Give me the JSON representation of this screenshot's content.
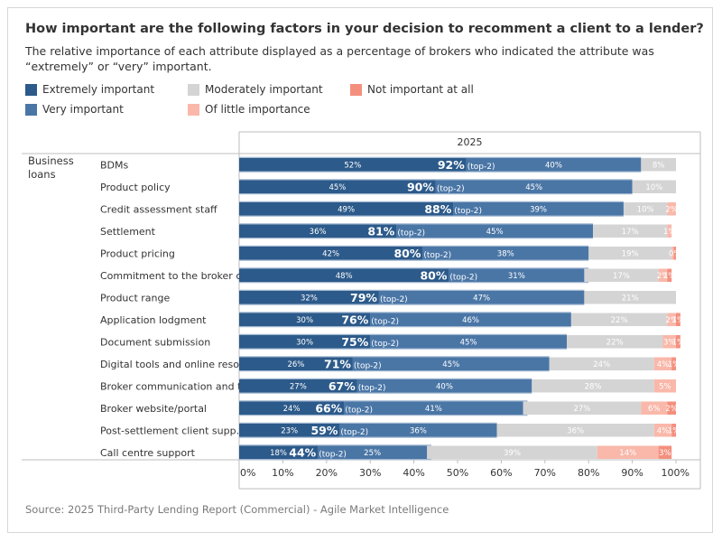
{
  "title": "How important are the following factors in your decision to recomment a client to a lender?",
  "subtitle_line1": "The relative importance of each attribute displayed as a percentage of brokers who indicated the attribute was",
  "subtitle_line2": "“extremely” or “very” important.",
  "source": "Source: 2025 Third-Party Lending Report (Commercial) - Agile Market Intelligence",
  "legend": [
    {
      "label": "Extremely important",
      "color": "#2c5a8a"
    },
    {
      "label": "Very important",
      "color": "#4a76a6"
    },
    {
      "label": "Moderately important",
      "color": "#d4d4d4"
    },
    {
      "label": "Of little importance",
      "color": "#f9b8aa"
    },
    {
      "label": "Not important at all",
      "color": "#f48f7e"
    }
  ],
  "chart_data": {
    "type": "bar",
    "orientation": "horizontal",
    "stacked": true,
    "column_header": "2025",
    "group_label": "Business loans",
    "categories": [
      "BDMs",
      "Product policy",
      "Credit assessment staff",
      "Settlement",
      "Product pricing",
      "Commitment to the broker c..",
      "Product range",
      "Application lodgment",
      "Document submission",
      "Digital tools and online reso..",
      "Broker communication and t..",
      "Broker website/portal",
      "Post-settlement client supp..",
      "Call centre support"
    ],
    "series": [
      {
        "name": "Extremely important",
        "values": [
          52,
          45,
          49,
          36,
          42,
          48,
          32,
          30,
          30,
          26,
          27,
          24,
          23,
          18
        ],
        "labels": [
          "52%",
          "45%",
          "49%",
          "36%",
          "42%",
          "48%",
          "32%",
          "30%",
          "30%",
          "26%",
          "27%",
          "24%",
          "23%",
          "18%"
        ]
      },
      {
        "name": "Very important",
        "values": [
          40,
          45,
          39,
          45,
          38,
          31,
          47,
          46,
          45,
          45,
          40,
          41,
          36,
          25
        ],
        "labels": [
          "40%",
          "45%",
          "39%",
          "45%",
          "38%",
          "31%",
          "47%",
          "46%",
          "45%",
          "45%",
          "40%",
          "41%",
          "36%",
          "25%"
        ]
      },
      {
        "name": "Moderately important",
        "values": [
          8,
          10,
          10,
          17,
          19,
          17,
          21,
          22,
          22,
          24,
          28,
          27,
          36,
          39
        ],
        "labels": [
          "8%",
          "10%",
          "10%",
          "17%",
          "19%",
          "17%",
          "21%",
          "22%",
          "22%",
          "24%",
          "28%",
          "27%",
          "36%",
          "39%"
        ]
      },
      {
        "name": "Of little importance",
        "values": [
          0,
          0,
          2,
          1,
          0.5,
          2,
          0,
          2,
          3,
          4,
          5,
          6,
          4,
          14
        ],
        "labels": [
          "",
          "",
          "2%",
          "1%",
          "",
          "2%",
          "",
          "2%",
          "3%",
          "4%",
          "5%",
          "6%",
          "4%",
          "14%"
        ]
      },
      {
        "name": "Not important at all",
        "values": [
          0,
          0,
          0,
          0,
          0.5,
          1,
          0,
          1,
          1,
          1,
          0,
          2,
          1,
          3
        ],
        "labels": [
          "",
          "",
          "",
          "",
          "0%",
          "1%",
          "",
          "1%",
          "1%",
          "1%",
          "",
          "2%",
          "1%",
          "3%"
        ]
      }
    ],
    "top2": [
      92,
      90,
      88,
      81,
      80,
      80,
      79,
      76,
      75,
      71,
      67,
      66,
      59,
      44
    ],
    "top2_labels": [
      "92%",
      "90%",
      "88%",
      "81%",
      "80%",
      "80%",
      "79%",
      "76%",
      "75%",
      "71%",
      "67%",
      "66%",
      "59%",
      "44%"
    ],
    "top2_suffix": "(top-2)",
    "xlim": [
      0,
      100
    ],
    "xticks": [
      0,
      10,
      20,
      30,
      40,
      50,
      60,
      70,
      80,
      90,
      100
    ],
    "xtick_labels": [
      "0%",
      "10%",
      "20%",
      "30%",
      "40%",
      "50%",
      "60%",
      "70%",
      "80%",
      "90%",
      "100%"
    ],
    "grid": false
  }
}
